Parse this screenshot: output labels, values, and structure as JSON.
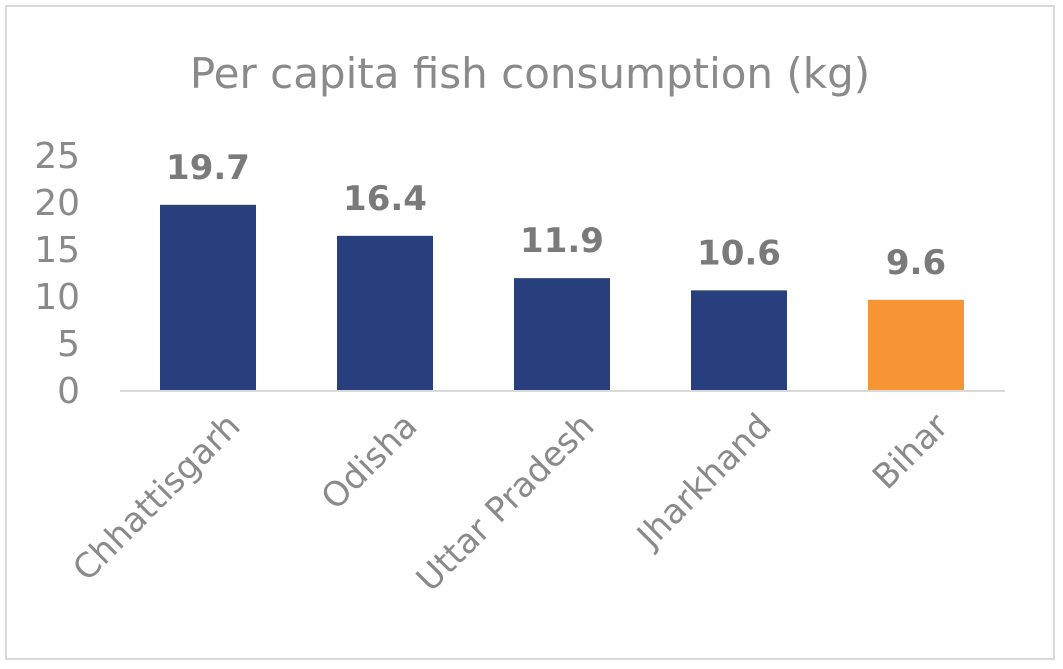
{
  "chart_data": {
    "type": "bar",
    "title": "Per capita fish consumption (kg)",
    "categories": [
      "Chhattisgarh",
      "Odisha",
      "Uttar Pradesh",
      "Jharkhand",
      "Bihar"
    ],
    "values": [
      19.7,
      16.4,
      11.9,
      10.6,
      9.6
    ],
    "data_labels": [
      "19.7",
      "16.4",
      "11.9",
      "10.6",
      "9.6"
    ],
    "colors": [
      "#27407d",
      "#27407d",
      "#27407d",
      "#27407d",
      "#f79433"
    ],
    "yticks": [
      "0",
      "5",
      "10",
      "15",
      "20",
      "25"
    ],
    "ylim": [
      0,
      25
    ],
    "xlabel": "",
    "ylabel": "",
    "grid": false,
    "legend": "none"
  }
}
